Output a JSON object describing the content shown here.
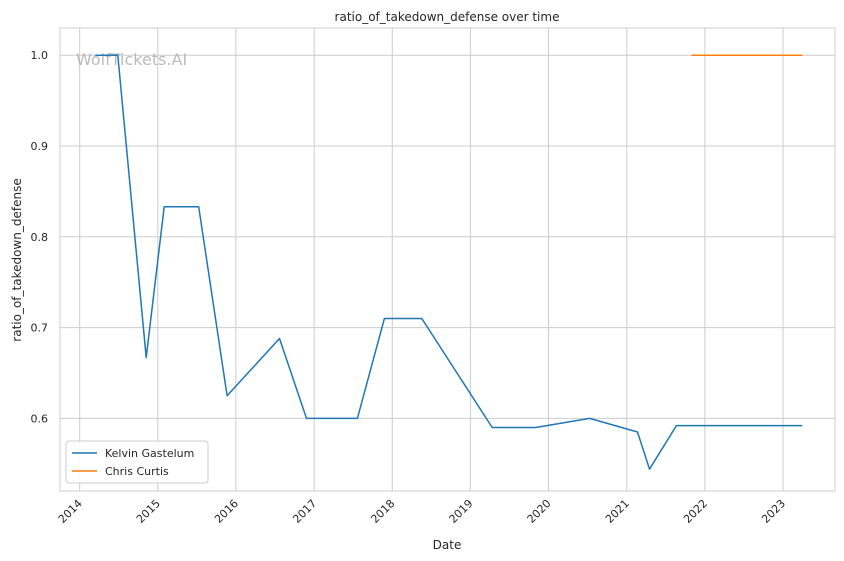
{
  "chart_data": {
    "type": "line",
    "title": "ratio_of_takedown_defense over time",
    "xlabel": "Date",
    "ylabel": "ratio_of_takedown_defense",
    "watermark": "WolfTickets.AI",
    "x_ticks": [
      "2014",
      "2015",
      "2016",
      "2017",
      "2018",
      "2019",
      "2020",
      "2021",
      "2022",
      "2023"
    ],
    "y_ticks": [
      "0.6",
      "0.7",
      "0.8",
      "0.9",
      "1.0"
    ],
    "xlim": [
      "2013-10-01",
      "2023-09-01"
    ],
    "ylim": [
      0.52,
      1.03
    ],
    "grid": true,
    "legend_position": "lower-left",
    "series": [
      {
        "name": "Kelvin Gastelum",
        "color": "#1f77b4",
        "points": [
          [
            "2014-03-15",
            1.0
          ],
          [
            "2014-06-28",
            1.0
          ],
          [
            "2014-11-08",
            0.667
          ],
          [
            "2015-01-31",
            0.833
          ],
          [
            "2015-07-11",
            0.833
          ],
          [
            "2015-11-21",
            0.625
          ],
          [
            "2016-07-23",
            0.688
          ],
          [
            "2016-11-26",
            0.6
          ],
          [
            "2017-07-22",
            0.6
          ],
          [
            "2017-11-25",
            0.71
          ],
          [
            "2018-05-19",
            0.71
          ],
          [
            "2019-04-13",
            0.59
          ],
          [
            "2019-11-02",
            0.59
          ],
          [
            "2020-07-11",
            0.6
          ],
          [
            "2021-02-20",
            0.585
          ],
          [
            "2021-04-17",
            0.544
          ],
          [
            "2021-08-21",
            0.592
          ],
          [
            "2023-04-01",
            0.592
          ]
        ]
      },
      {
        "name": "Chris Curtis",
        "color": "#ff7f0e",
        "points": [
          [
            "2021-10-30",
            1.0
          ],
          [
            "2023-04-01",
            1.0
          ]
        ]
      }
    ]
  }
}
